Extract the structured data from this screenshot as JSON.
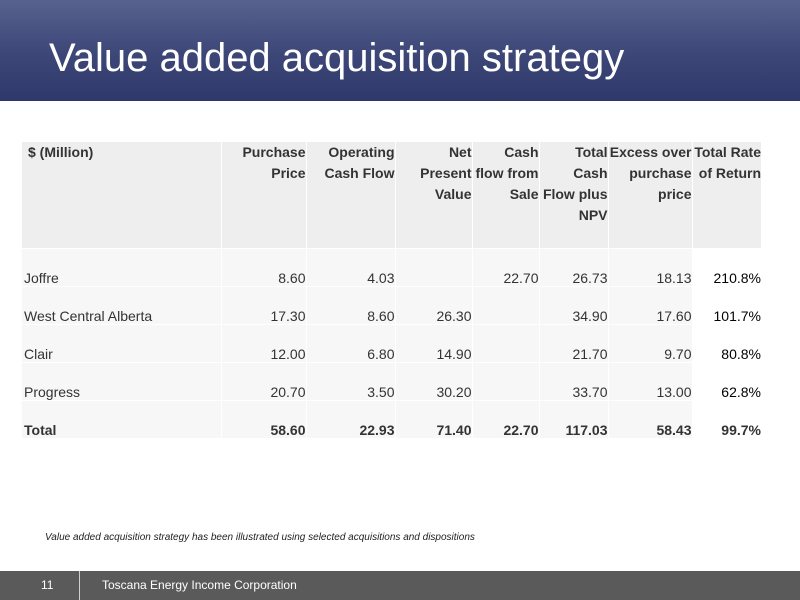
{
  "slide": {
    "title": "Value added acquisition strategy"
  },
  "table": {
    "headers": [
      "$ (Million)",
      "Purchase Price",
      "Operating Cash Flow",
      "Net Present Value",
      "Cash flow from Sale",
      "Total Cash Flow plus NPV",
      "Excess over purchase price",
      "Total Rate of Return"
    ],
    "rows": [
      [
        "Joffre",
        "8.60",
        "4.03",
        "",
        "22.70",
        "26.73",
        "18.13",
        "210.8%"
      ],
      [
        "West Central Alberta",
        "17.30",
        "8.60",
        "26.30",
        "",
        "34.90",
        "17.60",
        "101.7%"
      ],
      [
        "Clair",
        "12.00",
        "6.80",
        "14.90",
        "",
        "21.70",
        "9.70",
        "80.8%"
      ],
      [
        "Progress",
        "20.70",
        "3.50",
        "30.20",
        "",
        "33.70",
        "13.00",
        "62.8%"
      ],
      [
        "Total",
        "58.60",
        "22.93",
        "71.40",
        "22.70",
        "117.03",
        "58.43",
        "99.7%"
      ]
    ]
  },
  "footnote": "Value added acquisition strategy has been illustrated using selected acquisitions and dispositions",
  "footer": {
    "page_number": "11",
    "company": "Toscana Energy Income Corporation"
  }
}
